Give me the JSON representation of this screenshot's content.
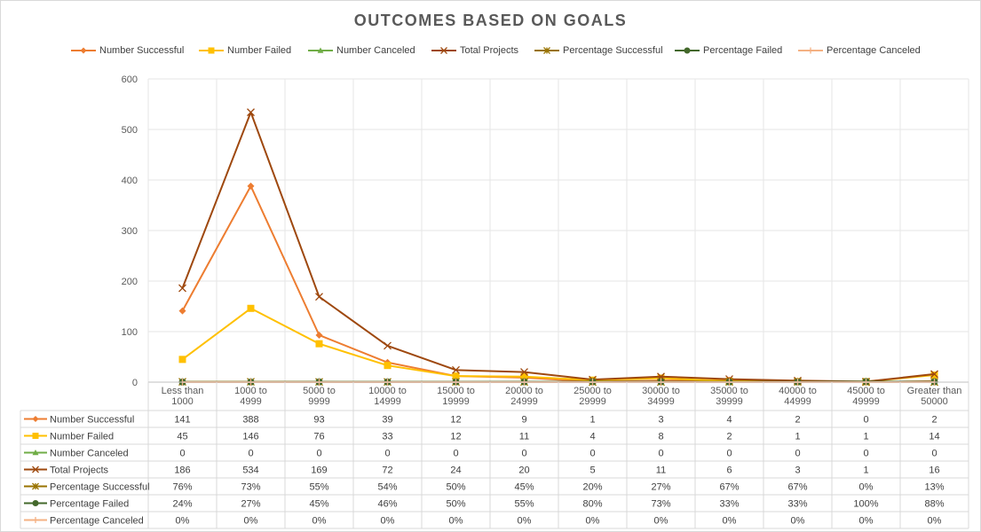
{
  "chart_data": {
    "type": "line",
    "title": "OUTCOMES BASED ON GOALS",
    "categories": [
      [
        "Less than",
        "1000"
      ],
      [
        "1000 to",
        "4999"
      ],
      [
        "5000 to",
        "9999"
      ],
      [
        "10000 to",
        "14999"
      ],
      [
        "15000 to",
        "19999"
      ],
      [
        "20000 to",
        "24999"
      ],
      [
        "25000 to",
        "29999"
      ],
      [
        "30000 to",
        "34999"
      ],
      [
        "35000 to",
        "39999"
      ],
      [
        "40000 to",
        "44999"
      ],
      [
        "45000 to",
        "49999"
      ],
      [
        "Greater than",
        "50000"
      ]
    ],
    "ylim": [
      0,
      600
    ],
    "yticks": [
      0,
      100,
      200,
      300,
      400,
      500,
      600
    ],
    "grid": true,
    "legend_position": "top",
    "data_table": true,
    "series": [
      {
        "name": "Number Successful",
        "color": "#ED7D31",
        "marker": "diamond",
        "values": [
          141,
          388,
          93,
          39,
          12,
          9,
          1,
          3,
          4,
          2,
          0,
          2
        ],
        "labels": [
          "141",
          "388",
          "93",
          "39",
          "12",
          "9",
          "1",
          "3",
          "4",
          "2",
          "0",
          "2"
        ]
      },
      {
        "name": "Number Failed",
        "color": "#FFC000",
        "marker": "square",
        "values": [
          45,
          146,
          76,
          33,
          12,
          11,
          4,
          8,
          2,
          1,
          1,
          14
        ],
        "labels": [
          "45",
          "146",
          "76",
          "33",
          "12",
          "11",
          "4",
          "8",
          "2",
          "1",
          "1",
          "14"
        ]
      },
      {
        "name": "Number Canceled",
        "color": "#70AD47",
        "marker": "triangle",
        "values": [
          0,
          0,
          0,
          0,
          0,
          0,
          0,
          0,
          0,
          0,
          0,
          0
        ],
        "labels": [
          "0",
          "0",
          "0",
          "0",
          "0",
          "0",
          "0",
          "0",
          "0",
          "0",
          "0",
          "0"
        ]
      },
      {
        "name": "Total Projects",
        "color": "#9E480E",
        "marker": "x",
        "values": [
          186,
          534,
          169,
          72,
          24,
          20,
          5,
          11,
          6,
          3,
          1,
          16
        ],
        "labels": [
          "186",
          "534",
          "169",
          "72",
          "24",
          "20",
          "5",
          "11",
          "6",
          "3",
          "1",
          "16"
        ]
      },
      {
        "name": "Percentage Successful",
        "color": "#997300",
        "marker": "star",
        "values": [
          0.76,
          0.73,
          0.55,
          0.54,
          0.5,
          0.45,
          0.2,
          0.27,
          0.67,
          0.67,
          0,
          0.13
        ],
        "labels": [
          "76%",
          "73%",
          "55%",
          "54%",
          "50%",
          "45%",
          "20%",
          "27%",
          "67%",
          "67%",
          "0%",
          "13%"
        ]
      },
      {
        "name": "Percentage Failed",
        "color": "#43682B",
        "marker": "circle",
        "values": [
          0.24,
          0.27,
          0.45,
          0.46,
          0.5,
          0.55,
          0.8,
          0.73,
          0.33,
          0.33,
          1.0,
          0.88
        ],
        "labels": [
          "24%",
          "27%",
          "45%",
          "46%",
          "50%",
          "55%",
          "80%",
          "73%",
          "33%",
          "33%",
          "100%",
          "88%"
        ]
      },
      {
        "name": "Percentage Canceled",
        "color": "#F4B183",
        "marker": "plus",
        "values": [
          0,
          0,
          0,
          0,
          0,
          0,
          0,
          0,
          0,
          0,
          0,
          0
        ],
        "labels": [
          "0%",
          "0%",
          "0%",
          "0%",
          "0%",
          "0%",
          "0%",
          "0%",
          "0%",
          "0%",
          "0%",
          "0%"
        ]
      }
    ]
  }
}
